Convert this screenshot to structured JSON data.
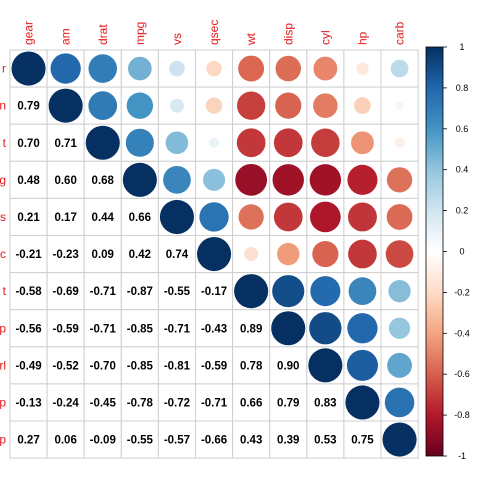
{
  "chart_data": {
    "type": "heatmap",
    "variables": [
      "gear",
      "am",
      "drat",
      "mpg",
      "vs",
      "qsec",
      "wt",
      "disp",
      "cyl",
      "hp",
      "carb"
    ],
    "row_labels": [
      "r",
      "n",
      "t",
      "g",
      "s",
      "c",
      "t",
      "p",
      "rl",
      "p",
      "p"
    ],
    "matrix": [
      [
        1.0,
        0.79,
        0.7,
        0.48,
        0.21,
        -0.21,
        -0.58,
        -0.56,
        -0.49,
        -0.13,
        0.27
      ],
      [
        0.79,
        1.0,
        0.71,
        0.6,
        0.17,
        -0.23,
        -0.69,
        -0.59,
        -0.52,
        -0.24,
        0.06
      ],
      [
        0.7,
        0.71,
        1.0,
        0.68,
        0.44,
        0.09,
        -0.71,
        -0.71,
        -0.7,
        -0.45,
        -0.09
      ],
      [
        0.48,
        0.6,
        0.68,
        1.0,
        0.66,
        0.42,
        -0.87,
        -0.85,
        -0.85,
        -0.78,
        -0.55
      ],
      [
        0.21,
        0.17,
        0.44,
        0.66,
        1.0,
        0.74,
        -0.55,
        -0.71,
        -0.81,
        -0.72,
        -0.57
      ],
      [
        -0.21,
        -0.23,
        0.09,
        0.42,
        0.74,
        1.0,
        -0.17,
        -0.43,
        -0.59,
        -0.71,
        -0.66
      ],
      [
        -0.58,
        -0.69,
        -0.71,
        -0.87,
        -0.55,
        -0.17,
        1.0,
        0.89,
        0.78,
        0.66,
        0.43
      ],
      [
        -0.56,
        -0.59,
        -0.71,
        -0.85,
        -0.71,
        -0.43,
        0.89,
        1.0,
        0.9,
        0.79,
        0.39
      ],
      [
        -0.49,
        -0.52,
        -0.7,
        -0.85,
        -0.81,
        -0.59,
        0.78,
        0.9,
        1.0,
        0.83,
        0.53
      ],
      [
        -0.13,
        -0.24,
        -0.45,
        -0.78,
        -0.72,
        -0.71,
        0.66,
        0.79,
        0.83,
        1.0,
        0.75
      ],
      [
        0.27,
        0.06,
        -0.09,
        -0.55,
        -0.57,
        -0.66,
        0.43,
        0.39,
        0.53,
        0.75,
        1.0
      ]
    ],
    "lower_triangle": "numbers",
    "upper_triangle": "circles",
    "colorbar": {
      "range": [
        -1,
        1
      ],
      "ticks": [
        "-1",
        "-0.8",
        "-0.6",
        "-0.4",
        "-0.2",
        "0",
        "0.2",
        "0.4",
        "0.6",
        "0.8",
        "1"
      ],
      "colors": [
        "#67001F",
        "#B2182B",
        "#D6604D",
        "#F4A582",
        "#FDDBC7",
        "#FFFFFF",
        "#D1E5F0",
        "#92C5DE",
        "#4393C3",
        "#2166AC",
        "#053061"
      ]
    },
    "label_color": "#E41A1C",
    "grid": true,
    "legend": "right"
  }
}
